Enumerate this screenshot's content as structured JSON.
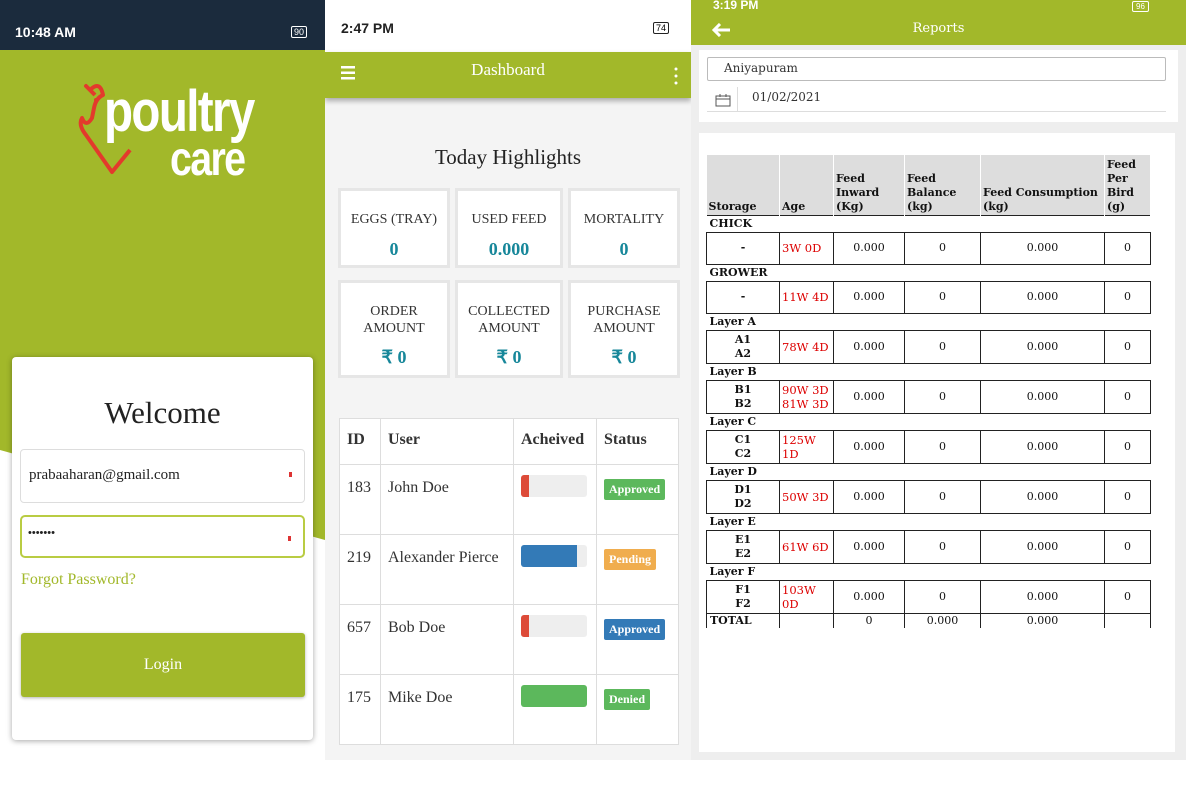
{
  "screens": [
    {
      "status_bar": {
        "time": "10:48 AM",
        "battery": "90"
      },
      "logo": {
        "line1": "poultry",
        "line2": "care"
      },
      "welcome": "Welcome",
      "email": "prabaaharan@gmail.com",
      "password": "•••••••",
      "forgot_password": "Forgot Password?",
      "login_button": "Login"
    },
    {
      "status_bar": {
        "time": "2:47 PM",
        "battery": "74"
      },
      "title": "Dashboard",
      "highlights_title": "Today Highlights",
      "cards": [
        {
          "label": "EGGS (TRAY)",
          "value": "0"
        },
        {
          "label": "USED FEED",
          "value": "0.000"
        },
        {
          "label": "MORTALITY",
          "value": "0"
        },
        {
          "label": "ORDER AMOUNT",
          "value": "₹ 0"
        },
        {
          "label": "COLLECTED AMOUNT",
          "value": "₹ 0"
        },
        {
          "label": "PURCHASE AMOUNT",
          "value": "₹ 0"
        }
      ],
      "table": {
        "columns": [
          "ID",
          "User",
          "Acheived",
          "Status"
        ],
        "rows": [
          {
            "id": "183",
            "user": "John Doe",
            "achieved": 12,
            "bar_color": "#dd4b39",
            "status": "Approved",
            "status_color": "#5cb85c"
          },
          {
            "id": "219",
            "user": "Alexander Pierce",
            "achieved": 85,
            "bar_color": "#337ab7",
            "status": "Pending",
            "status_color": "#f0ad4e"
          },
          {
            "id": "657",
            "user": "Bob Doe",
            "achieved": 12,
            "bar_color": "#dd4b39",
            "status": "Approved",
            "status_color": "#337ab7"
          },
          {
            "id": "175",
            "user": "Mike Doe",
            "achieved": 100,
            "bar_color": "#5cb85c",
            "status": "Denied",
            "status_color": "#5cb85c"
          }
        ]
      }
    },
    {
      "status_bar": {
        "time": "3:19 PM",
        "battery": "96"
      },
      "title": "Reports",
      "location": "Aniyapuram",
      "date": "01/02/2021",
      "table": {
        "columns": [
          "Storage",
          "Age",
          "Feed Inward (Kg)",
          "Feed Balance (kg)",
          "Feed Consumption (kg)",
          "Feed Per Bird (g)"
        ],
        "sections": [
          {
            "name": "CHICK",
            "storage": [
              "-"
            ],
            "age": "3W 0D",
            "cells": [
              "0.000",
              "0",
              "0.000",
              "0"
            ]
          },
          {
            "name": "GROWER",
            "storage": [
              "-"
            ],
            "age": "11W 4D",
            "cells": [
              "0.000",
              "0",
              "0.000",
              "0"
            ]
          },
          {
            "name": "Layer A",
            "storage": [
              "A1",
              "A2"
            ],
            "age": "78W 4D",
            "cells": [
              "0.000",
              "0",
              "0.000",
              "0"
            ]
          },
          {
            "name": "Layer B",
            "storage": [
              "B1",
              "B2"
            ],
            "age": "90W 3D 81W 3D",
            "cells": [
              "0.000",
              "0",
              "0.000",
              "0"
            ]
          },
          {
            "name": "Layer C",
            "storage": [
              "C1",
              "C2"
            ],
            "age": "125W 1D",
            "cells": [
              "0.000",
              "0",
              "0.000",
              "0"
            ]
          },
          {
            "name": "Layer D",
            "storage": [
              "D1",
              "D2"
            ],
            "age": "50W 3D",
            "cells": [
              "0.000",
              "0",
              "0.000",
              "0"
            ]
          },
          {
            "name": "Layer E",
            "storage": [
              "E1",
              "E2"
            ],
            "age": "61W 6D",
            "cells": [
              "0.000",
              "0",
              "0.000",
              "0"
            ]
          },
          {
            "name": "Layer F",
            "storage": [
              "F1",
              "F2"
            ],
            "age": "103W 0D",
            "cells": [
              "0.000",
              "0",
              "0.000",
              "0"
            ]
          }
        ],
        "total": {
          "label": "TOTAL",
          "cells": [
            "0",
            "0.000",
            "0.000"
          ]
        }
      }
    }
  ]
}
